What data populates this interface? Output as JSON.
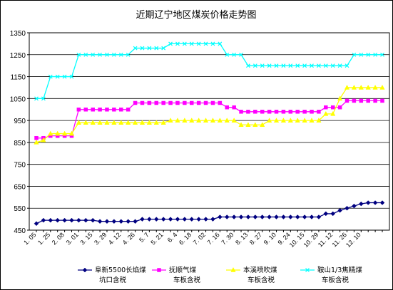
{
  "chart_data": {
    "type": "line",
    "title": "近期辽宁地区煤炭价格走势图",
    "xlabel": "",
    "ylabel": "",
    "ylim": [
      450,
      1350
    ],
    "yticks": [
      450,
      550,
      650,
      750,
      850,
      950,
      1050,
      1150,
      1250,
      1350
    ],
    "grid": true,
    "legend_position": "bottom",
    "plot_background": "#ffffff",
    "x": [
      "1.05",
      "1.15",
      "1.25",
      "2.04",
      "2.08",
      "2.18",
      "3.01",
      "3.08",
      "3.15",
      "3.22",
      "3.29",
      "4.05",
      "4.12",
      "4.19",
      "4.26",
      "5.04",
      "5.07",
      "5.14",
      "5.21",
      "5.28",
      "6.04",
      "6.11",
      "6.18",
      "6.25",
      "7.02",
      "7.09",
      "7.16",
      "7.23",
      "7.30",
      "8.06",
      "8.13",
      "8.20",
      "8.27",
      "9.03",
      "9.10",
      "9.17",
      "9.24",
      "10.01",
      "10.08",
      "10.15",
      "10.22",
      "10.29",
      "11.05",
      "11.12",
      "11.19",
      "11.26",
      "12.03",
      "12.10",
      "12.17",
      "12.24"
    ],
    "x_tick_labels": [
      "1. 05",
      "1. 25",
      "2. 08",
      "3. 01",
      "3. 15",
      "3. 29",
      "4. 12",
      "4. 26",
      "5. 7",
      "5. 21",
      "6. 4",
      "6. 18",
      "7. 02",
      "7. 16",
      "7. 30",
      "8. 13",
      "8. 27",
      "9. 10",
      "9. 24",
      "10. 15",
      "10. 29",
      "11. 12",
      "11. 26",
      "12. 10"
    ],
    "series": [
      {
        "name": "阜新5500长焰煤坑口含税",
        "color": "#000080",
        "marker": "diamond",
        "values": [
          480,
          495,
          495,
          495,
          495,
          495,
          495,
          495,
          495,
          490,
          490,
          490,
          490,
          490,
          490,
          500,
          500,
          500,
          500,
          500,
          500,
          500,
          500,
          500,
          500,
          500,
          510,
          510,
          510,
          510,
          510,
          510,
          510,
          510,
          510,
          510,
          510,
          510,
          510,
          510,
          510,
          525,
          525,
          540,
          550,
          560,
          570,
          575,
          575,
          575
        ]
      },
      {
        "name": "抚顺气煤车板含税",
        "color": "#ff00ff",
        "marker": "square",
        "values": [
          870,
          870,
          880,
          880,
          880,
          880,
          1000,
          1000,
          1000,
          1000,
          1000,
          1000,
          1000,
          1000,
          1030,
          1030,
          1030,
          1030,
          1030,
          1030,
          1030,
          1030,
          1030,
          1030,
          1030,
          1030,
          1030,
          1010,
          1010,
          990,
          990,
          990,
          990,
          990,
          990,
          990,
          990,
          990,
          990,
          990,
          990,
          1010,
          1010,
          1010,
          1040,
          1040,
          1040,
          1040,
          1040,
          1040
        ]
      },
      {
        "name": "本溪喷吹煤车板含税",
        "color": "#ffff00",
        "marker": "triangle",
        "values": [
          850,
          860,
          890,
          890,
          890,
          890,
          940,
          940,
          940,
          940,
          940,
          940,
          940,
          940,
          940,
          940,
          940,
          940,
          940,
          950,
          950,
          950,
          950,
          950,
          950,
          950,
          950,
          950,
          950,
          930,
          930,
          930,
          930,
          950,
          950,
          950,
          950,
          950,
          950,
          950,
          950,
          980,
          980,
          1050,
          1100,
          1100,
          1100,
          1100,
          1100,
          1100
        ]
      },
      {
        "name": "鞍山1/3焦精煤车板含税",
        "color": "#00ffff",
        "marker": "x",
        "values": [
          1050,
          1050,
          1150,
          1150,
          1150,
          1150,
          1250,
          1250,
          1250,
          1250,
          1250,
          1250,
          1250,
          1250,
          1280,
          1280,
          1280,
          1280,
          1280,
          1300,
          1300,
          1300,
          1300,
          1300,
          1300,
          1300,
          1300,
          1250,
          1250,
          1250,
          1200,
          1200,
          1200,
          1200,
          1200,
          1200,
          1200,
          1200,
          1200,
          1200,
          1200,
          1200,
          1200,
          1200,
          1200,
          1250,
          1250,
          1250,
          1250,
          1250
        ]
      }
    ],
    "legend": [
      {
        "line1": "阜新5500长焰煤",
        "line2": "坑口含税"
      },
      {
        "line1": "抚顺气煤",
        "line2": "车板含税"
      },
      {
        "line1": "本溪喷吹煤",
        "line2": "车板含税"
      },
      {
        "line1": "鞍山1/3焦精煤",
        "line2": "车板含税"
      }
    ]
  }
}
